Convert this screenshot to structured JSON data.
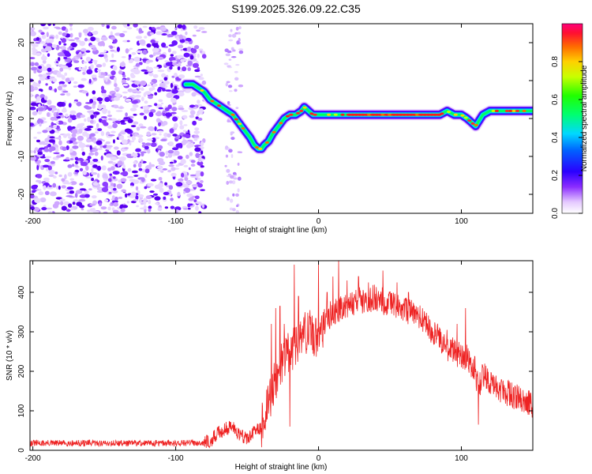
{
  "title": "S199.2025.326.09.22.C35",
  "chart_data": [
    {
      "type": "heatmap",
      "name": "spectrogram",
      "xlabel": "Height of straight line (km)",
      "ylabel": "Frequency (Hz)",
      "xlim": [
        -202,
        150
      ],
      "ylim": [
        -25,
        25
      ],
      "xticks": [
        -200,
        -100,
        0,
        100
      ],
      "yticks": [
        -20,
        -10,
        0,
        10,
        20
      ],
      "noise_region_x": [
        -202,
        -80
      ],
      "sparse_band_x": [
        -65,
        -54
      ],
      "ridge": {
        "x": [
          -93,
          -88,
          -84,
          -80,
          -76,
          -72,
          -68,
          -64,
          -60,
          -56,
          -52,
          -48,
          -45,
          -42,
          -40,
          -38,
          -35,
          -32,
          -28,
          -24,
          -20,
          -16,
          -12,
          -10,
          -7,
          -4,
          0,
          10,
          20,
          30,
          40,
          50,
          60,
          70,
          80,
          85,
          90,
          95,
          100,
          104,
          107,
          110,
          115,
          120,
          130,
          140,
          150
        ],
        "y": [
          9,
          9,
          8,
          7,
          5,
          4,
          3,
          2,
          1,
          -1,
          -3,
          -5,
          -7,
          -8,
          -8,
          -7,
          -6,
          -4,
          -2,
          0,
          1,
          1,
          2,
          3,
          2,
          1,
          1,
          1,
          1,
          1,
          1,
          1,
          1,
          1,
          1,
          1,
          2,
          1,
          1,
          0,
          -1,
          -2,
          1,
          2,
          2,
          2,
          2
        ]
      },
      "colorbar": {
        "label": "Normalized spectral amplitude",
        "range": [
          0,
          1
        ],
        "ticks": [
          0.0,
          0.2,
          0.4,
          0.6,
          0.8
        ]
      }
    },
    {
      "type": "line",
      "name": "snr",
      "xlabel": "Height of straight line (km)",
      "ylabel": "SNR (10 * v/v)",
      "xlim": [
        -202,
        150
      ],
      "ylim": [
        0,
        480
      ],
      "xticks": [
        -200,
        -100,
        0,
        100
      ],
      "yticks": [
        0,
        100,
        200,
        300,
        400
      ],
      "color": "#ee2222",
      "envelope": {
        "x": [
          -202,
          -180,
          -160,
          -140,
          -120,
          -100,
          -80,
          -75,
          -70,
          -65,
          -60,
          -55,
          -50,
          -45,
          -40,
          -35,
          -30,
          -25,
          -20,
          -15,
          -10,
          -5,
          0,
          5,
          10,
          20,
          30,
          40,
          50,
          60,
          70,
          80,
          90,
          100,
          105,
          110,
          112,
          115,
          120,
          130,
          140,
          150
        ],
        "y": [
          18,
          18,
          18,
          18,
          18,
          18,
          20,
          25,
          45,
          55,
          60,
          40,
          30,
          45,
          60,
          120,
          180,
          230,
          250,
          270,
          300,
          290,
          290,
          330,
          350,
          370,
          380,
          385,
          370,
          355,
          340,
          300,
          260,
          240,
          230,
          200,
          150,
          190,
          175,
          150,
          130,
          115
        ]
      },
      "spikes": {
        "x": [
          -33,
          -30,
          -27,
          -24,
          -20,
          -17,
          -14,
          -10,
          -6,
          -2,
          0,
          3,
          6,
          10,
          14,
          20,
          28,
          35,
          45,
          55,
          63,
          90,
          97,
          103,
          112
        ],
        "y": [
          320,
          360,
          365,
          320,
          60,
          470,
          390,
          320,
          355,
          335,
          480,
          260,
          400,
          440,
          480,
          430,
          440,
          425,
          455,
          425,
          400,
          305,
          320,
          360,
          65
        ]
      }
    }
  ]
}
